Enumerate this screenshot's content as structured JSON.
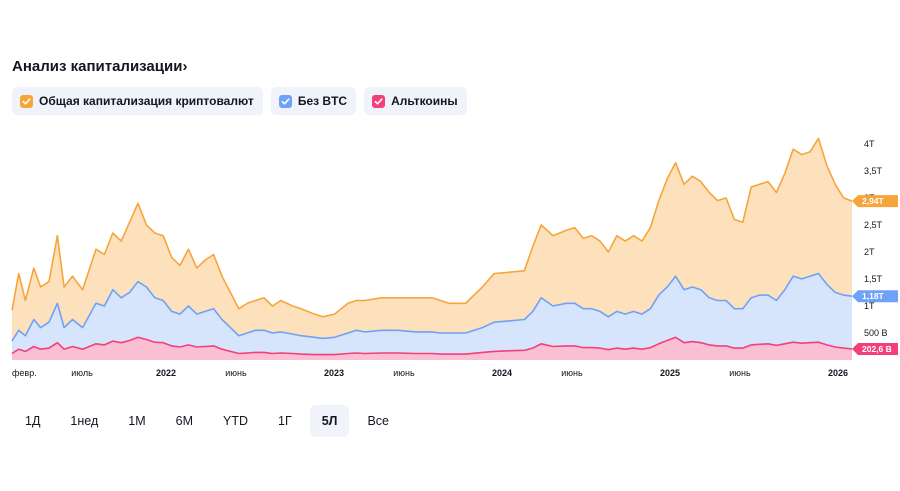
{
  "title": "Анализ капитализации›",
  "legend": [
    {
      "label": "Общая капитализация криптовалют",
      "color": "#f7a53b"
    },
    {
      "label": "Без BTC",
      "color": "#6fa2f6"
    },
    {
      "label": "Альткоины",
      "color": "#f2407a"
    }
  ],
  "ranges": [
    "1Д",
    "1нед",
    "1М",
    "6М",
    "YTD",
    "1Г",
    "5Л",
    "Все"
  ],
  "active_range": "5Л",
  "chart_data": {
    "type": "area",
    "title": "",
    "xlabel": "",
    "ylabel": "",
    "ylim": [
      0,
      4.2
    ],
    "x_ticks": [
      {
        "label": "февр.",
        "t": 0.0,
        "year": false
      },
      {
        "label": "июль",
        "t": 0.417,
        "year": false
      },
      {
        "label": "2022",
        "t": 0.917,
        "year": true
      },
      {
        "label": "июнь",
        "t": 1.333,
        "year": false
      },
      {
        "label": "2023",
        "t": 1.917,
        "year": true
      },
      {
        "label": "июнь",
        "t": 2.333,
        "year": false
      },
      {
        "label": "2024",
        "t": 2.917,
        "year": true
      },
      {
        "label": "июнь",
        "t": 3.333,
        "year": false
      },
      {
        "label": "2025",
        "t": 3.917,
        "year": true
      },
      {
        "label": "июнь",
        "t": 4.333,
        "year": false
      },
      {
        "label": "2026",
        "t": 4.917,
        "year": true
      }
    ],
    "y_ticks": [
      {
        "label": "500 B",
        "v": 0.5
      },
      {
        "label": "1T",
        "v": 1.0
      },
      {
        "label": "1,5T",
        "v": 1.5
      },
      {
        "label": "2T",
        "v": 2.0
      },
      {
        "label": "2,5T",
        "v": 2.5
      },
      {
        "label": "3T",
        "v": 3.0
      },
      {
        "label": "3,5T",
        "v": 3.5
      },
      {
        "label": "4T",
        "v": 4.0
      }
    ],
    "x_domain": [
      0,
      5.0
    ],
    "series": [
      {
        "name": "Общая капитализация криптовалют",
        "color": "#f7a53b",
        "fill": "#fde1bd",
        "last_label": "2,94T",
        "points": [
          [
            0,
            0.92
          ],
          [
            0.04,
            1.6
          ],
          [
            0.08,
            1.1
          ],
          [
            0.13,
            1.7
          ],
          [
            0.17,
            1.35
          ],
          [
            0.22,
            1.45
          ],
          [
            0.27,
            2.3
          ],
          [
            0.31,
            1.35
          ],
          [
            0.36,
            1.55
          ],
          [
            0.42,
            1.3
          ],
          [
            0.5,
            2.05
          ],
          [
            0.55,
            1.95
          ],
          [
            0.6,
            2.35
          ],
          [
            0.65,
            2.2
          ],
          [
            0.7,
            2.55
          ],
          [
            0.75,
            2.9
          ],
          [
            0.8,
            2.5
          ],
          [
            0.85,
            2.35
          ],
          [
            0.9,
            2.3
          ],
          [
            0.95,
            1.9
          ],
          [
            1.0,
            1.75
          ],
          [
            1.05,
            2.05
          ],
          [
            1.1,
            1.7
          ],
          [
            1.15,
            1.85
          ],
          [
            1.2,
            1.95
          ],
          [
            1.25,
            1.55
          ],
          [
            1.3,
            1.25
          ],
          [
            1.35,
            0.95
          ],
          [
            1.4,
            1.05
          ],
          [
            1.45,
            1.1
          ],
          [
            1.5,
            1.15
          ],
          [
            1.55,
            1.0
          ],
          [
            1.6,
            1.1
          ],
          [
            1.67,
            1.0
          ],
          [
            1.72,
            0.95
          ],
          [
            1.8,
            0.85
          ],
          [
            1.85,
            0.8
          ],
          [
            1.92,
            0.85
          ],
          [
            2.0,
            1.05
          ],
          [
            2.05,
            1.1
          ],
          [
            2.1,
            1.1
          ],
          [
            2.2,
            1.15
          ],
          [
            2.3,
            1.15
          ],
          [
            2.4,
            1.15
          ],
          [
            2.5,
            1.15
          ],
          [
            2.55,
            1.1
          ],
          [
            2.6,
            1.05
          ],
          [
            2.7,
            1.05
          ],
          [
            2.8,
            1.35
          ],
          [
            2.87,
            1.6
          ],
          [
            2.95,
            1.62
          ],
          [
            3.05,
            1.65
          ],
          [
            3.1,
            2.1
          ],
          [
            3.15,
            2.5
          ],
          [
            3.22,
            2.3
          ],
          [
            3.3,
            2.4
          ],
          [
            3.35,
            2.45
          ],
          [
            3.4,
            2.25
          ],
          [
            3.45,
            2.3
          ],
          [
            3.5,
            2.2
          ],
          [
            3.55,
            2.0
          ],
          [
            3.6,
            2.3
          ],
          [
            3.65,
            2.2
          ],
          [
            3.7,
            2.3
          ],
          [
            3.75,
            2.2
          ],
          [
            3.8,
            2.45
          ],
          [
            3.85,
            2.95
          ],
          [
            3.9,
            3.35
          ],
          [
            3.95,
            3.65
          ],
          [
            4.0,
            3.25
          ],
          [
            4.05,
            3.4
          ],
          [
            4.1,
            3.3
          ],
          [
            4.15,
            3.1
          ],
          [
            4.2,
            2.95
          ],
          [
            4.25,
            3.0
          ],
          [
            4.3,
            2.6
          ],
          [
            4.35,
            2.55
          ],
          [
            4.4,
            3.2
          ],
          [
            4.45,
            3.25
          ],
          [
            4.5,
            3.3
          ],
          [
            4.55,
            3.1
          ],
          [
            4.6,
            3.45
          ],
          [
            4.65,
            3.9
          ],
          [
            4.7,
            3.8
          ],
          [
            4.75,
            3.85
          ],
          [
            4.8,
            4.1
          ],
          [
            4.85,
            3.6
          ],
          [
            4.9,
            3.25
          ],
          [
            4.95,
            3.0
          ],
          [
            5.0,
            2.94
          ]
        ]
      },
      {
        "name": "Без BTC",
        "color": "#6fa2f6",
        "fill": "#d6e4fc",
        "last_label": "1,18T",
        "points": [
          [
            0,
            0.35
          ],
          [
            0.04,
            0.55
          ],
          [
            0.08,
            0.45
          ],
          [
            0.13,
            0.75
          ],
          [
            0.17,
            0.6
          ],
          [
            0.22,
            0.7
          ],
          [
            0.27,
            1.05
          ],
          [
            0.31,
            0.6
          ],
          [
            0.36,
            0.75
          ],
          [
            0.42,
            0.6
          ],
          [
            0.5,
            1.05
          ],
          [
            0.55,
            1.0
          ],
          [
            0.6,
            1.3
          ],
          [
            0.65,
            1.15
          ],
          [
            0.7,
            1.25
          ],
          [
            0.75,
            1.45
          ],
          [
            0.8,
            1.35
          ],
          [
            0.85,
            1.15
          ],
          [
            0.9,
            1.1
          ],
          [
            0.95,
            0.9
          ],
          [
            1.0,
            0.85
          ],
          [
            1.05,
            1.0
          ],
          [
            1.1,
            0.85
          ],
          [
            1.15,
            0.9
          ],
          [
            1.2,
            0.95
          ],
          [
            1.25,
            0.75
          ],
          [
            1.3,
            0.6
          ],
          [
            1.35,
            0.45
          ],
          [
            1.4,
            0.5
          ],
          [
            1.45,
            0.55
          ],
          [
            1.5,
            0.55
          ],
          [
            1.55,
            0.5
          ],
          [
            1.6,
            0.52
          ],
          [
            1.67,
            0.48
          ],
          [
            1.72,
            0.45
          ],
          [
            1.8,
            0.42
          ],
          [
            1.85,
            0.4
          ],
          [
            1.92,
            0.42
          ],
          [
            2.0,
            0.5
          ],
          [
            2.05,
            0.55
          ],
          [
            2.1,
            0.52
          ],
          [
            2.2,
            0.55
          ],
          [
            2.3,
            0.55
          ],
          [
            2.4,
            0.52
          ],
          [
            2.5,
            0.52
          ],
          [
            2.55,
            0.5
          ],
          [
            2.6,
            0.5
          ],
          [
            2.7,
            0.5
          ],
          [
            2.8,
            0.6
          ],
          [
            2.87,
            0.7
          ],
          [
            2.95,
            0.72
          ],
          [
            3.05,
            0.75
          ],
          [
            3.1,
            0.9
          ],
          [
            3.15,
            1.15
          ],
          [
            3.22,
            1.0
          ],
          [
            3.3,
            1.05
          ],
          [
            3.35,
            1.05
          ],
          [
            3.4,
            0.95
          ],
          [
            3.45,
            0.95
          ],
          [
            3.5,
            0.9
          ],
          [
            3.55,
            0.8
          ],
          [
            3.6,
            0.9
          ],
          [
            3.65,
            0.85
          ],
          [
            3.7,
            0.9
          ],
          [
            3.75,
            0.85
          ],
          [
            3.8,
            0.95
          ],
          [
            3.85,
            1.2
          ],
          [
            3.9,
            1.35
          ],
          [
            3.95,
            1.55
          ],
          [
            4.0,
            1.3
          ],
          [
            4.05,
            1.35
          ],
          [
            4.1,
            1.3
          ],
          [
            4.15,
            1.15
          ],
          [
            4.2,
            1.1
          ],
          [
            4.25,
            1.1
          ],
          [
            4.3,
            0.95
          ],
          [
            4.35,
            0.95
          ],
          [
            4.4,
            1.15
          ],
          [
            4.45,
            1.2
          ],
          [
            4.5,
            1.2
          ],
          [
            4.55,
            1.1
          ],
          [
            4.6,
            1.3
          ],
          [
            4.65,
            1.55
          ],
          [
            4.7,
            1.5
          ],
          [
            4.75,
            1.55
          ],
          [
            4.8,
            1.6
          ],
          [
            4.85,
            1.4
          ],
          [
            4.9,
            1.25
          ],
          [
            4.95,
            1.2
          ],
          [
            5.0,
            1.18
          ]
        ]
      },
      {
        "name": "Альткоины",
        "color": "#f2407a",
        "fill": "#fbbfd3",
        "last_label": "202,6 B",
        "points": [
          [
            0,
            0.12
          ],
          [
            0.04,
            0.2
          ],
          [
            0.08,
            0.16
          ],
          [
            0.13,
            0.25
          ],
          [
            0.17,
            0.2
          ],
          [
            0.22,
            0.22
          ],
          [
            0.27,
            0.32
          ],
          [
            0.31,
            0.2
          ],
          [
            0.36,
            0.25
          ],
          [
            0.42,
            0.2
          ],
          [
            0.5,
            0.3
          ],
          [
            0.55,
            0.28
          ],
          [
            0.6,
            0.35
          ],
          [
            0.65,
            0.32
          ],
          [
            0.7,
            0.36
          ],
          [
            0.75,
            0.42
          ],
          [
            0.8,
            0.38
          ],
          [
            0.85,
            0.33
          ],
          [
            0.9,
            0.32
          ],
          [
            0.95,
            0.26
          ],
          [
            1.0,
            0.24
          ],
          [
            1.05,
            0.28
          ],
          [
            1.1,
            0.24
          ],
          [
            1.15,
            0.25
          ],
          [
            1.2,
            0.26
          ],
          [
            1.25,
            0.2
          ],
          [
            1.3,
            0.16
          ],
          [
            1.35,
            0.12
          ],
          [
            1.4,
            0.13
          ],
          [
            1.45,
            0.14
          ],
          [
            1.5,
            0.14
          ],
          [
            1.55,
            0.12
          ],
          [
            1.6,
            0.13
          ],
          [
            1.67,
            0.12
          ],
          [
            1.72,
            0.11
          ],
          [
            1.8,
            0.1
          ],
          [
            1.85,
            0.1
          ],
          [
            1.92,
            0.1
          ],
          [
            2.0,
            0.12
          ],
          [
            2.05,
            0.13
          ],
          [
            2.1,
            0.12
          ],
          [
            2.2,
            0.13
          ],
          [
            2.3,
            0.13
          ],
          [
            2.4,
            0.12
          ],
          [
            2.5,
            0.12
          ],
          [
            2.55,
            0.11
          ],
          [
            2.6,
            0.11
          ],
          [
            2.7,
            0.11
          ],
          [
            2.8,
            0.14
          ],
          [
            2.87,
            0.16
          ],
          [
            2.95,
            0.17
          ],
          [
            3.05,
            0.18
          ],
          [
            3.1,
            0.22
          ],
          [
            3.15,
            0.3
          ],
          [
            3.22,
            0.25
          ],
          [
            3.3,
            0.26
          ],
          [
            3.35,
            0.26
          ],
          [
            3.4,
            0.23
          ],
          [
            3.45,
            0.23
          ],
          [
            3.5,
            0.22
          ],
          [
            3.55,
            0.19
          ],
          [
            3.6,
            0.22
          ],
          [
            3.65,
            0.2
          ],
          [
            3.7,
            0.22
          ],
          [
            3.75,
            0.2
          ],
          [
            3.8,
            0.23
          ],
          [
            3.85,
            0.3
          ],
          [
            3.9,
            0.36
          ],
          [
            3.95,
            0.42
          ],
          [
            4.0,
            0.32
          ],
          [
            4.05,
            0.34
          ],
          [
            4.1,
            0.32
          ],
          [
            4.15,
            0.28
          ],
          [
            4.2,
            0.26
          ],
          [
            4.25,
            0.26
          ],
          [
            4.3,
            0.22
          ],
          [
            4.35,
            0.22
          ],
          [
            4.4,
            0.28
          ],
          [
            4.45,
            0.29
          ],
          [
            4.5,
            0.3
          ],
          [
            4.55,
            0.27
          ],
          [
            4.6,
            0.3
          ],
          [
            4.65,
            0.33
          ],
          [
            4.7,
            0.31
          ],
          [
            4.75,
            0.32
          ],
          [
            4.8,
            0.33
          ],
          [
            4.85,
            0.28
          ],
          [
            4.9,
            0.24
          ],
          [
            4.95,
            0.22
          ],
          [
            5.0,
            0.2026
          ]
        ]
      }
    ]
  }
}
